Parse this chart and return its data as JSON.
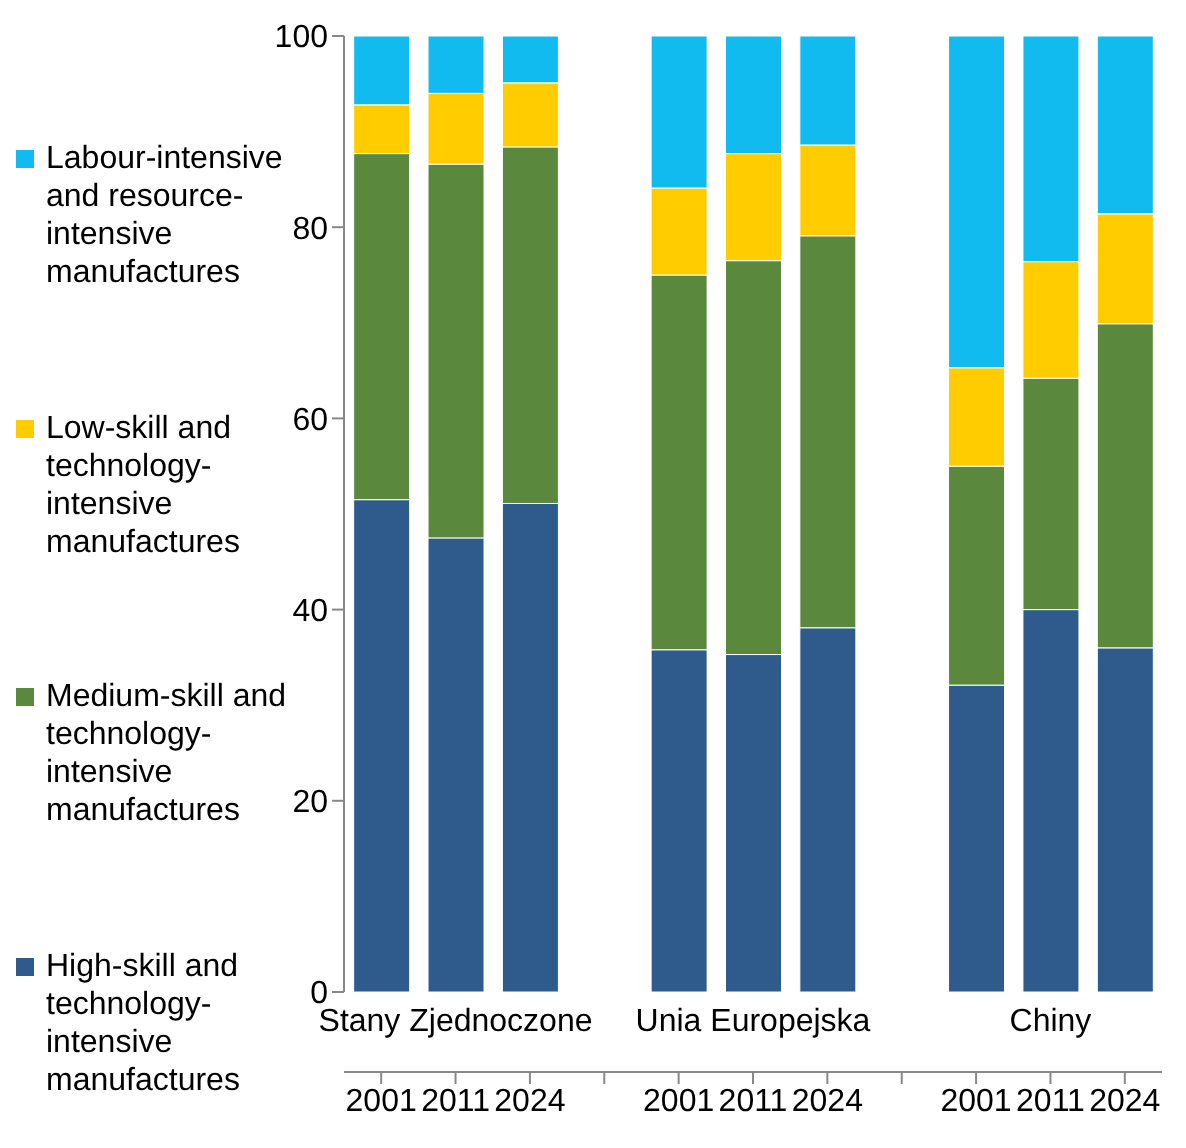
{
  "chart_data": {
    "type": "bar",
    "stacked": true,
    "categories": [
      "2001",
      "2011",
      "2024",
      null,
      "2001",
      "2011",
      "2024",
      null,
      "2001",
      "2011",
      "2024"
    ],
    "series": [
      {
        "name": "High-skill and technology-intensive manufactures",
        "color": "#2e5a8c",
        "values": [
          51.5,
          47.5,
          51.1,
          null,
          35.8,
          35.3,
          38.1,
          null,
          32.1,
          40.0,
          36.0
        ]
      },
      {
        "name": "Medium-skill and technology-intensive manufactures",
        "color": "#5a893e",
        "values": [
          36.2,
          39.1,
          37.3,
          null,
          39.2,
          41.2,
          41.0,
          null,
          22.9,
          24.2,
          33.9
        ]
      },
      {
        "name": "Low-skill and technology-intensive manufactures",
        "color": "#ffcc00",
        "values": [
          5.1,
          7.4,
          6.7,
          null,
          9.1,
          11.2,
          9.5,
          null,
          10.3,
          12.2,
          11.5
        ]
      },
      {
        "name": "Labour-intensive and resource-intensive manufactures",
        "color": "#12bbef",
        "values": [
          7.2,
          6.0,
          4.9,
          null,
          15.9,
          12.3,
          11.4,
          null,
          34.7,
          23.6,
          18.6
        ]
      }
    ],
    "annotations": [
      "Stany Zjednoczone",
      "Unia Europejska",
      "Chiny"
    ],
    "ylim": [
      0,
      100
    ],
    "yticks": [
      0,
      20,
      40,
      60,
      80,
      100
    ],
    "legend": "left"
  }
}
